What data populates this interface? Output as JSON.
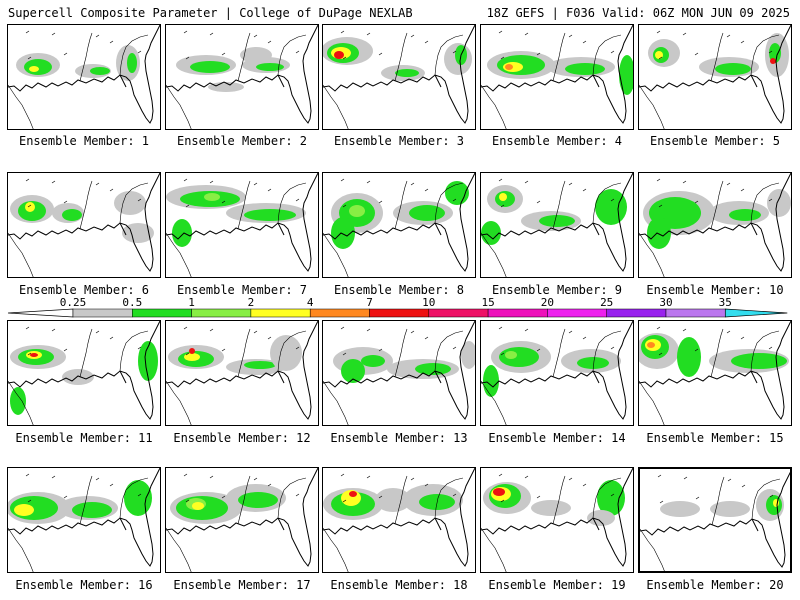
{
  "header": {
    "left": "Supercell Composite Parameter | College of DuPage NEXLAB",
    "right": "18Z GEFS | F036 Valid: 06Z MON JUN 09 2025"
  },
  "colorbar": {
    "levels": [
      "0.25",
      "0.5",
      "1",
      "2",
      "4",
      "7",
      "10",
      "15",
      "20",
      "25",
      "30",
      "35"
    ],
    "colors": {
      "gray": "#c8c8c8",
      "green_dark": "#22dd22",
      "green_light": "#88ee44",
      "yellow": "#ffff22",
      "orange": "#ff8820",
      "red": "#ee1111",
      "crimson": "#ee1166",
      "magenta": "#ee11bb",
      "violet": "#ee22ee",
      "purple": "#9922ee",
      "lavender": "#bb77ee",
      "cyan": "#33ddee"
    }
  },
  "members": [
    {
      "label": "Ensemble Member: 1"
    },
    {
      "label": "Ensemble Member: 2"
    },
    {
      "label": "Ensemble Member: 3"
    },
    {
      "label": "Ensemble Member: 4"
    },
    {
      "label": "Ensemble Member: 5"
    },
    {
      "label": "Ensemble Member: 6"
    },
    {
      "label": "Ensemble Member: 7"
    },
    {
      "label": "Ensemble Member: 8"
    },
    {
      "label": "Ensemble Member: 9"
    },
    {
      "label": "Ensemble Member: 10"
    },
    {
      "label": "Ensemble Member: 11"
    },
    {
      "label": "Ensemble Member: 12"
    },
    {
      "label": "Ensemble Member: 13"
    },
    {
      "label": "Ensemble Member: 14"
    },
    {
      "label": "Ensemble Member: 15"
    },
    {
      "label": "Ensemble Member: 16"
    },
    {
      "label": "Ensemble Member: 17"
    },
    {
      "label": "Ensemble Member: 18"
    },
    {
      "label": "Ensemble Member: 19"
    },
    {
      "label": "Ensemble Member: 20"
    }
  ]
}
